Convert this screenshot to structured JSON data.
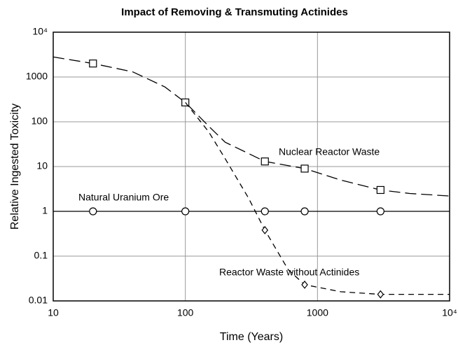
{
  "chart_data": {
    "type": "line",
    "title": "Impact of Removing & Transmuting Actinides",
    "xlabel": "Time (Years)",
    "ylabel": "Relative Ingested Toxicity",
    "xscale": "log",
    "yscale": "log",
    "grid": true,
    "xlim": [
      10,
      10000
    ],
    "ylim": [
      0.01,
      10000
    ],
    "xticks": [
      10,
      100,
      1000,
      {
        "value": 10000,
        "label": "10⁴"
      }
    ],
    "yticks": [
      0.01,
      0.1,
      1,
      10,
      100,
      1000,
      {
        "value": 10000,
        "label": "10⁴"
      }
    ],
    "series": [
      {
        "name": "Nuclear Reactor Waste",
        "color": "#000000",
        "marker": "square",
        "x": [
          10,
          20,
          40,
          70,
          100,
          150,
          200,
          400,
          800,
          1500,
          3000,
          5000,
          10000
        ],
        "values": [
          2800,
          2000,
          1300,
          600,
          270,
          80,
          35,
          13,
          9,
          5,
          3,
          2.5,
          2.2
        ],
        "marker_x": [
          20,
          100,
          400,
          800,
          3000
        ],
        "marker_values": [
          2000,
          270,
          13,
          9,
          3
        ]
      },
      {
        "name": "Natural Uranium Ore",
        "color": "#000000",
        "marker": "circle",
        "x": [
          10,
          10000
        ],
        "values": [
          1,
          1
        ],
        "marker_x": [
          20,
          100,
          400,
          800,
          3000
        ],
        "marker_values": [
          1,
          1,
          1,
          1,
          1
        ]
      },
      {
        "name": "Reactor Waste without Actinides",
        "color": "#000000",
        "marker": "diamond",
        "x": [
          100,
          150,
          200,
          300,
          400,
          600,
          800,
          1500,
          3000,
          10000
        ],
        "values": [
          270,
          60,
          15,
          2,
          0.38,
          0.05,
          0.023,
          0.016,
          0.014,
          0.014
        ],
        "marker_x": [
          400,
          800,
          3000
        ],
        "marker_values": [
          0.38,
          0.023,
          0.014
        ]
      }
    ]
  }
}
